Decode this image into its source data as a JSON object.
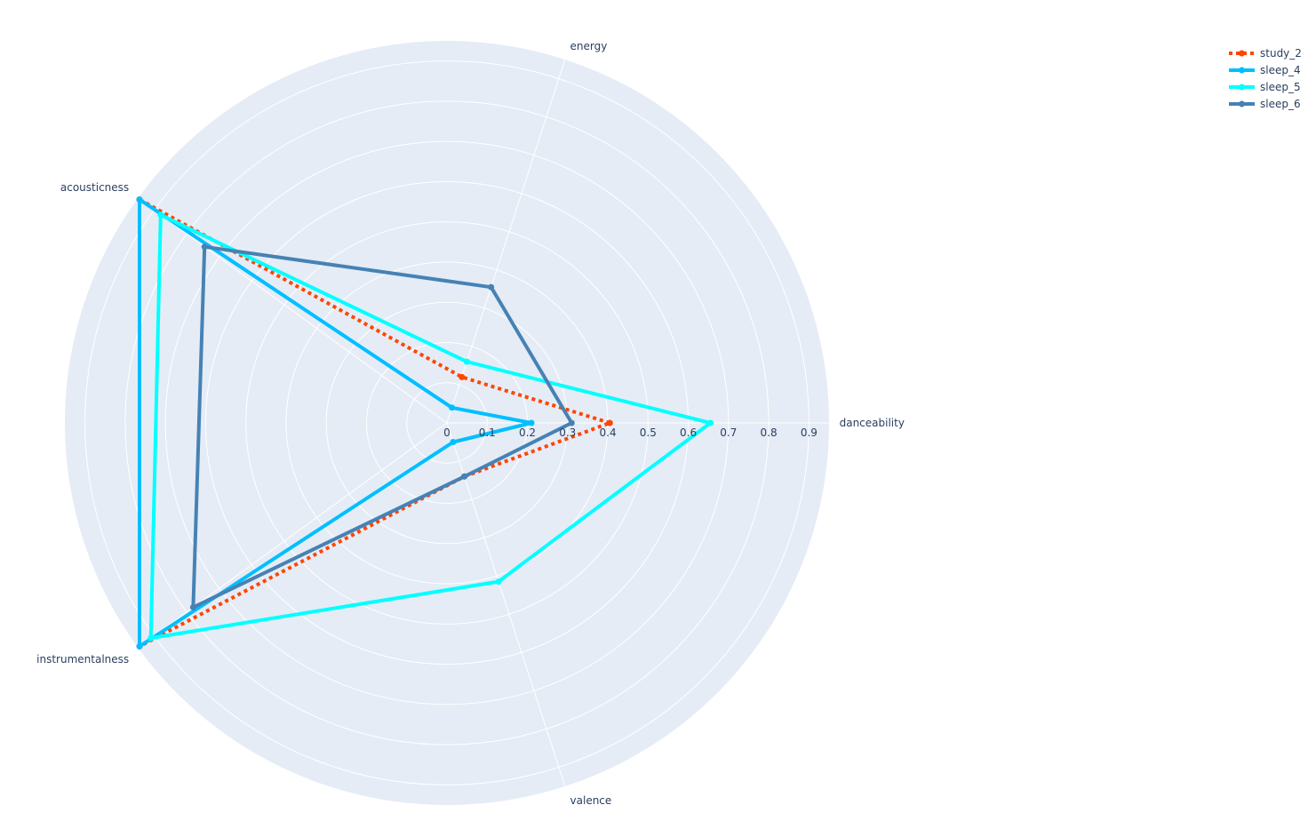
{
  "chart_data": {
    "type": "radar",
    "title": "",
    "axes": [
      "danceability",
      "energy",
      "acousticness",
      "instrumentalness",
      "valence"
    ],
    "radial_ticks": [
      "0",
      "0.1",
      "0.2",
      "0.3",
      "0.4",
      "0.5",
      "0.6",
      "0.7",
      "0.8",
      "0.9"
    ],
    "radial_range": [
      0,
      0.95
    ],
    "grid": true,
    "legend_position": "top-right",
    "background_color": "#e5ecf6",
    "series": [
      {
        "name": "study_2",
        "color": "#ff4500",
        "dash": "dot",
        "values": [
          0.405,
          0.12,
          0.945,
          0.945,
          0.14
        ]
      },
      {
        "name": "sleep_4",
        "color": "#00bfff",
        "dash": "solid",
        "values": [
          0.21,
          0.04,
          0.945,
          0.945,
          0.05
        ]
      },
      {
        "name": "sleep_5",
        "color": "#00ffff",
        "dash": "solid",
        "values": [
          0.655,
          0.16,
          0.88,
          0.91,
          0.415
        ]
      },
      {
        "name": "sleep_6",
        "color": "#4682b4",
        "dash": "solid",
        "values": [
          0.31,
          0.355,
          0.745,
          0.78,
          0.14
        ]
      }
    ]
  }
}
